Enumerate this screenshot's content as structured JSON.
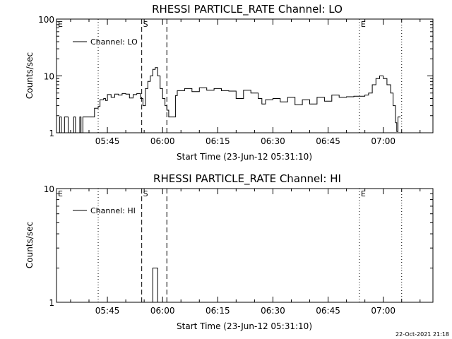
{
  "page": {
    "timestamp": "22-Oct-2021 21:18"
  },
  "chart_data": [
    {
      "type": "line",
      "title": "RHESSI PARTICLE_RATE Channel: LO",
      "xlabel": "Start Time (23-Jun-12 05:31:10)",
      "ylabel": "Counts/sec",
      "yscale": "log",
      "xlim": [
        "05:31:10",
        "07:13:30"
      ],
      "ylim": [
        1,
        100
      ],
      "x_ticks": [
        "05:45",
        "06:00",
        "06:15",
        "06:30",
        "06:45",
        "07:00"
      ],
      "y_ticks": [
        "1",
        "10",
        "100"
      ],
      "legend": {
        "position": "top-left",
        "entries": [
          "Channel: LO"
        ]
      },
      "markers": [
        {
          "label": "E",
          "time": "05:31:10",
          "style": "dotted"
        },
        {
          "label": "",
          "time": "05:42:30",
          "style": "dotted"
        },
        {
          "label": "S",
          "time": "05:54:20",
          "style": "dashed"
        },
        {
          "label": "",
          "time": "06:01:10",
          "style": "dashed"
        },
        {
          "label": "E",
          "time": "06:53:30",
          "style": "dotted"
        },
        {
          "label": "",
          "time": "07:05:00",
          "style": "dotted"
        }
      ],
      "series": [
        {
          "name": "Channel: LO",
          "x": [
            "05:31:10",
            "05:32:00",
            "05:32:30",
            "05:33:10",
            "05:33:20",
            "05:34:00",
            "05:34:20",
            "05:35:00",
            "05:35:50",
            "05:36:20",
            "05:37:00",
            "05:37:30",
            "05:37:50",
            "05:38:20",
            "05:38:40",
            "05:39:20",
            "05:40:00",
            "05:41:00",
            "05:41:30",
            "05:42:30",
            "05:43:00",
            "05:44:00",
            "05:44:30",
            "05:45:00",
            "05:46:00",
            "05:47:00",
            "05:48:00",
            "05:49:00",
            "05:50:00",
            "05:51:00",
            "05:52:00",
            "05:53:00",
            "05:54:00",
            "05:54:40",
            "05:55:20",
            "05:56:00",
            "05:56:40",
            "05:57:20",
            "05:58:00",
            "05:58:40",
            "05:59:20",
            "06:00:00",
            "06:00:40",
            "06:01:10",
            "06:01:40",
            "06:02:20",
            "06:03:00",
            "06:03:30",
            "06:04:00",
            "06:06:00",
            "06:08:00",
            "06:10:00",
            "06:12:00",
            "06:14:00",
            "06:16:00",
            "06:18:00",
            "06:20:00",
            "06:22:00",
            "06:24:00",
            "06:26:00",
            "06:27:00",
            "06:28:00",
            "06:30:00",
            "06:32:00",
            "06:34:00",
            "06:36:00",
            "06:38:00",
            "06:40:00",
            "06:42:00",
            "06:44:00",
            "06:46:00",
            "06:48:00",
            "06:50:00",
            "06:52:00",
            "06:54:00",
            "06:55:00",
            "06:56:00",
            "06:57:00",
            "06:58:00",
            "06:59:00",
            "07:00:00",
            "07:01:00",
            "07:02:00",
            "07:02:40",
            "07:03:20",
            "07:03:40",
            "07:04:00",
            "07:04:20",
            "07:04:40"
          ],
          "y": [
            1,
            1.9,
            1,
            1,
            1.9,
            1.9,
            1,
            1,
            1.9,
            1,
            1,
            1.9,
            1,
            1.9,
            1.9,
            1.9,
            1.9,
            1.9,
            2.7,
            2.9,
            3.8,
            4,
            3.7,
            4.7,
            4.2,
            4.8,
            4.6,
            4.9,
            4.8,
            4.1,
            4.7,
            4.9,
            4,
            3,
            6,
            8,
            10,
            13,
            14,
            10,
            6,
            4,
            3,
            2.5,
            1.9,
            1.9,
            1.9,
            4.5,
            5.5,
            6,
            5.3,
            6.2,
            5.6,
            6,
            5.5,
            5.4,
            4,
            5.6,
            5,
            4,
            3.2,
            3.8,
            4,
            3.5,
            4.2,
            3.1,
            3.8,
            3.2,
            4.2,
            3.6,
            4.6,
            4.2,
            4.3,
            4.4,
            4.4,
            4.6,
            5,
            7,
            9,
            10,
            9,
            7,
            5,
            3,
            1.5,
            1.05,
            1.9,
            1.9,
            1.9
          ]
        }
      ]
    },
    {
      "type": "line",
      "title": "RHESSI PARTICLE_RATE Channel: HI",
      "xlabel": "Start Time (23-Jun-12 05:31:10)",
      "ylabel": "Counts/sec",
      "yscale": "log",
      "xlim": [
        "05:31:10",
        "07:13:30"
      ],
      "ylim": [
        1,
        10
      ],
      "x_ticks": [
        "05:45",
        "06:00",
        "06:15",
        "06:30",
        "06:45",
        "07:00"
      ],
      "y_ticks": [
        "1",
        "10"
      ],
      "legend": {
        "position": "top-left",
        "entries": [
          "Channel: HI"
        ]
      },
      "markers": [
        {
          "label": "E",
          "time": "05:31:10",
          "style": "dotted"
        },
        {
          "label": "",
          "time": "05:42:30",
          "style": "dotted"
        },
        {
          "label": "S",
          "time": "05:54:20",
          "style": "dashed"
        },
        {
          "label": "",
          "time": "06:01:10",
          "style": "dashed"
        },
        {
          "label": "E",
          "time": "06:53:30",
          "style": "dotted"
        },
        {
          "label": "",
          "time": "07:05:00",
          "style": "dotted"
        }
      ],
      "series": [
        {
          "name": "Channel: HI",
          "x": [
            "05:57:00",
            "05:57:20",
            "05:58:20",
            "05:58:40"
          ],
          "y": [
            1,
            2,
            2,
            1
          ]
        }
      ]
    }
  ]
}
